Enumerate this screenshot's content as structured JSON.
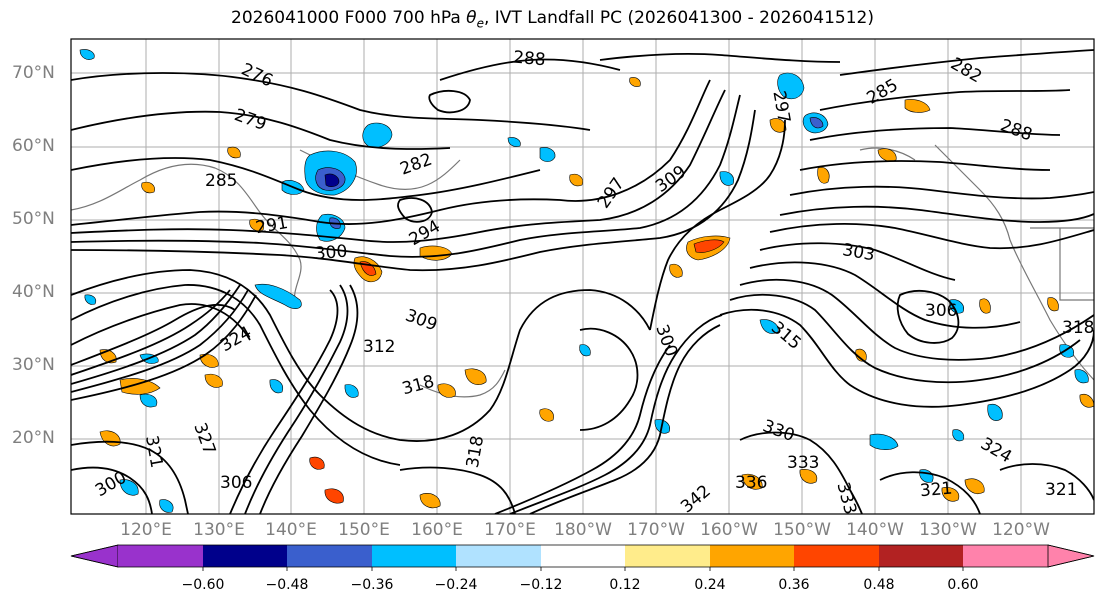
{
  "title": "2026041000 F000 700 hPa θe, IVT Landfall PC (2026041300 - 2026041512)",
  "title_parts": {
    "prefix": "2026041000 F000 700 hPa ",
    "theta": "θ",
    "sub": "e",
    "suffix": ", IVT Landfall PC (2026041300 - 2026041512)"
  },
  "lat_labels": [
    "70°N",
    "60°N",
    "50°N",
    "40°N",
    "30°N",
    "20°N"
  ],
  "lon_labels": [
    "120°E",
    "130°E",
    "140°E",
    "150°E",
    "160°E",
    "170°E",
    "180°W",
    "170°W",
    "160°W",
    "150°W",
    "140°W",
    "130°W",
    "120°W"
  ],
  "contour_labels": [
    "276",
    "279",
    "285",
    "291",
    "288",
    "282",
    "294",
    "300",
    "309",
    "312",
    "318",
    "321",
    "318",
    "306",
    "297",
    "303",
    "309",
    "300",
    "315",
    "330",
    "333",
    "336",
    "342",
    "324",
    "327",
    "321",
    "324",
    "333",
    "285",
    "288",
    "282",
    "318",
    "321",
    "306",
    "297",
    "300"
  ],
  "colorbar": {
    "ticks": [
      "−0.60",
      "−0.48",
      "−0.36",
      "−0.24",
      "−0.12",
      "0.12",
      "0.24",
      "0.36",
      "0.48",
      "0.60"
    ],
    "colors": {
      "under": "#9932cc",
      "b1": "#9932cc",
      "b2": "#00008b",
      "b3": "#3a5fcd",
      "b4": "#00bfff",
      "b5": "#b0e2ff",
      "b6": "#ffffff",
      "b7": "#ffec8b",
      "b8": "#ffa500",
      "b9": "#ff4500",
      "b10": "#b22222",
      "b11": "#ff82ab",
      "over": "#ff82ab"
    }
  },
  "map": {
    "lat_range": [
      10,
      75
    ],
    "lon_range_east": [
      115,
      255
    ],
    "grid": true
  }
}
